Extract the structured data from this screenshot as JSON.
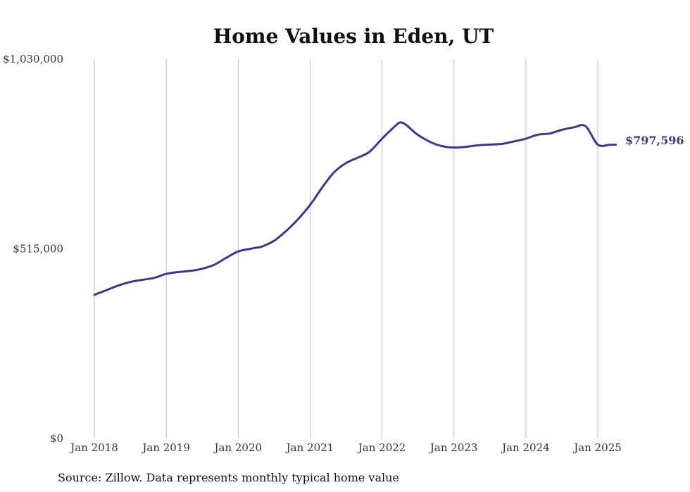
{
  "chart_data": {
    "type": "line",
    "title": "Home Values in Eden, UT",
    "source": "Source: Zillow. Data represents monthly typical home value",
    "y_tick_labels": [
      "$0",
      "$515,000",
      "$1,030,000"
    ],
    "y_tick_values": [
      0,
      515000,
      1030000
    ],
    "ylim": [
      0,
      1030000
    ],
    "x_tick_labels": [
      "Jan 2018",
      "Jan 2019",
      "Jan 2020",
      "Jan 2021",
      "Jan 2022",
      "Jan 2023",
      "Jan 2024",
      "Jan 2025"
    ],
    "x_tick_values": [
      2018,
      2019,
      2020,
      2021,
      2022,
      2023,
      2024,
      2025
    ],
    "xlim": [
      2018,
      2025.33
    ],
    "grid": "vertical",
    "line_color": "#3d3590",
    "end_label": "$797,596",
    "series": [
      {
        "x": [
          2018.0,
          2018.17,
          2018.33,
          2018.5,
          2018.67,
          2018.83,
          2019.0,
          2019.17,
          2019.33,
          2019.5,
          2019.67,
          2019.83,
          2020.0,
          2020.17,
          2020.25,
          2020.33,
          2020.5,
          2020.67,
          2020.83,
          2021.0,
          2021.17,
          2021.33,
          2021.5,
          2021.67,
          2021.83,
          2022.0,
          2022.17,
          2022.25,
          2022.33,
          2022.42,
          2022.5,
          2022.67,
          2022.83,
          2023.0,
          2023.17,
          2023.33,
          2023.5,
          2023.67,
          2023.75,
          2023.92,
          2024.0,
          2024.17,
          2024.33,
          2024.5,
          2024.67,
          2024.83,
          2025.0,
          2025.17,
          2025.25
        ],
        "y": [
          390000,
          403000,
          415000,
          425000,
          431000,
          436000,
          447000,
          452000,
          455000,
          461000,
          472000,
          490000,
          508000,
          515000,
          518000,
          521000,
          537000,
          564000,
          595000,
          634000,
          682000,
          722000,
          748000,
          763000,
          779000,
          814000,
          846000,
          858000,
          852000,
          837000,
          824000,
          805000,
          794000,
          790000,
          792000,
          796000,
          798000,
          800000,
          803000,
          810000,
          814000,
          825000,
          828000,
          838000,
          845000,
          848000,
          798000,
          797596,
          797596
        ]
      }
    ]
  }
}
